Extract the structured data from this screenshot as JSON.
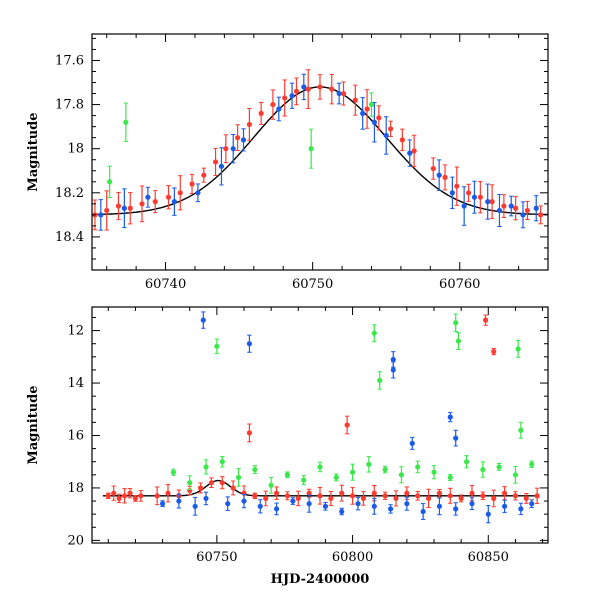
{
  "chart_data": [
    {
      "type": "scatter",
      "panel": "top",
      "xlabel": "",
      "ylabel": "Magnitude",
      "xlim": [
        60735,
        60766
      ],
      "ylim": [
        18.55,
        17.48
      ],
      "y_inverted": true,
      "xticks": [
        60740,
        60750,
        60760
      ],
      "yticks": [
        17.6,
        17.8,
        18,
        18.2,
        18.4
      ],
      "ytick_labels": [
        "17.6",
        "17.8",
        "18",
        "18.2",
        "18.4"
      ],
      "model_curve": {
        "type": "line",
        "color": "#000000",
        "shape": "gaussian",
        "baseline": 18.3,
        "peak": 17.72,
        "peak_x": 60750.5,
        "sigma_days": 4.5
      },
      "series": [
        {
          "color": "#ff3b2f",
          "x": [
            60735.2,
            60736.0,
            60736.8,
            60737.6,
            60738.4,
            60739.3,
            60740.2,
            60741.0,
            60741.8,
            60742.6,
            60743.4,
            60744.1,
            60744.9,
            60745.7,
            60746.5,
            60747.3,
            60748.1,
            60748.9,
            60749.7,
            60750.5,
            60751.3,
            60752.1,
            60752.9,
            60753.7,
            60754.5,
            60755.3,
            60756.1,
            60756.9,
            60758.2,
            60759.0,
            60759.8,
            60760.6,
            60761.4,
            60762.2,
            60763.0,
            60763.8,
            60764.6,
            60765.5
          ],
          "y": [
            18.3,
            18.28,
            18.26,
            18.27,
            18.25,
            18.24,
            18.22,
            18.2,
            18.16,
            18.12,
            18.06,
            18.0,
            17.95,
            17.89,
            17.84,
            17.8,
            17.77,
            17.74,
            17.73,
            17.72,
            17.73,
            17.75,
            17.78,
            17.82,
            17.86,
            17.91,
            17.96,
            18.01,
            18.09,
            18.13,
            18.17,
            18.2,
            18.22,
            18.24,
            18.26,
            18.27,
            18.28,
            18.3
          ]
        },
        {
          "color": "#1a5be8",
          "x": [
            60735.6,
            60737.2,
            60738.8,
            60740.6,
            60742.2,
            60743.8,
            60744.6,
            60745.3,
            60747.7,
            60748.6,
            60749.4,
            60751.8,
            60753.4,
            60754.2,
            60755.0,
            60756.6,
            60758.6,
            60759.5,
            60760.3,
            60761.0,
            60761.9,
            60762.7,
            60763.5,
            60764.3,
            60765.2
          ],
          "y": [
            18.3,
            18.27,
            18.22,
            18.24,
            18.2,
            18.08,
            18.0,
            17.96,
            17.82,
            17.76,
            17.72,
            17.75,
            17.84,
            17.88,
            17.94,
            18.02,
            18.12,
            18.2,
            18.26,
            18.22,
            18.24,
            18.28,
            18.26,
            18.3,
            18.27
          ]
        },
        {
          "color": "#3ae84a",
          "x": [
            60736.2,
            60737.3,
            60749.9,
            60754.0
          ],
          "y": [
            18.15,
            17.88,
            18.0,
            17.8
          ]
        }
      ]
    },
    {
      "type": "scatter",
      "panel": "bottom",
      "xlabel": "HJD-2400000",
      "ylabel": "Magnitude",
      "xlim": [
        60704,
        60872
      ],
      "ylim": [
        20.1,
        11.1
      ],
      "y_inverted": true,
      "xticks": [
        60750,
        60800,
        60850
      ],
      "yticks": [
        12,
        14,
        16,
        18,
        20
      ],
      "model_curve": {
        "type": "line",
        "color": "#000000",
        "baseline": 18.3,
        "x_range": [
          60708,
          60868
        ],
        "bump_peak": 17.72,
        "bump_x": 60750.5,
        "bump_sigma_days": 4.5
      },
      "series": [
        {
          "color": "#ff3b2f",
          "x": [
            60710,
            60712,
            60714,
            60716,
            60718,
            60720,
            60722,
            60728,
            60732,
            60736,
            60740,
            60744,
            60748,
            60752,
            60756,
            60760,
            60764,
            60768,
            60772,
            60776,
            60780,
            60784,
            60788,
            60792,
            60796,
            60800,
            60804,
            60808,
            60812,
            60816,
            60820,
            60824,
            60828,
            60832,
            60836,
            60840,
            60844,
            60848,
            60852,
            60856,
            60860,
            60864,
            60868,
            60762,
            60798,
            60849,
            60852
          ],
          "y": [
            18.3,
            18.2,
            18.4,
            18.3,
            18.2,
            18.4,
            18.3,
            18.3,
            18.2,
            18.3,
            18.1,
            18.0,
            17.8,
            17.8,
            18.0,
            18.2,
            18.3,
            18.4,
            18.2,
            18.3,
            18.4,
            18.2,
            18.3,
            18.4,
            18.2,
            18.3,
            18.4,
            18.2,
            18.3,
            18.4,
            18.2,
            18.3,
            18.4,
            18.2,
            18.3,
            18.4,
            18.2,
            18.3,
            18.4,
            18.2,
            18.3,
            18.4,
            18.3,
            15.9,
            15.6,
            11.6,
            12.8
          ]
        },
        {
          "color": "#1a5be8",
          "x": [
            60730,
            60736,
            60742,
            60746,
            60754,
            60760,
            60766,
            60772,
            60778,
            60784,
            60790,
            60796,
            60802,
            60808,
            60814,
            60820,
            60826,
            60832,
            60838,
            60844,
            60850,
            60856,
            60862,
            60866,
            60745,
            60762,
            60815,
            60815,
            60822,
            60836,
            60838
          ],
          "y": [
            18.6,
            18.5,
            18.7,
            18.4,
            18.6,
            18.5,
            18.7,
            18.8,
            18.5,
            18.6,
            18.7,
            18.9,
            18.6,
            18.7,
            18.8,
            18.6,
            18.9,
            18.7,
            18.8,
            18.6,
            19.0,
            18.7,
            18.8,
            18.6,
            11.6,
            12.5,
            13.1,
            13.5,
            16.3,
            15.3,
            16.1
          ]
        },
        {
          "color": "#3ae84a",
          "x": [
            60734,
            60740,
            60746,
            60752,
            60758,
            60764,
            60770,
            60776,
            60782,
            60788,
            60794,
            60800,
            60806,
            60812,
            60818,
            60824,
            60830,
            60836,
            60842,
            60848,
            60854,
            60860,
            60866,
            60750,
            60808,
            60810,
            60838,
            60839,
            60861,
            60862
          ],
          "y": [
            17.4,
            17.8,
            17.2,
            17.0,
            17.6,
            17.3,
            17.9,
            17.5,
            17.7,
            17.2,
            17.6,
            17.4,
            17.1,
            17.3,
            17.5,
            17.2,
            17.4,
            17.6,
            17.0,
            17.3,
            17.2,
            17.5,
            17.1,
            12.6,
            12.1,
            13.9,
            11.7,
            12.4,
            12.7,
            15.8
          ]
        }
      ]
    }
  ]
}
